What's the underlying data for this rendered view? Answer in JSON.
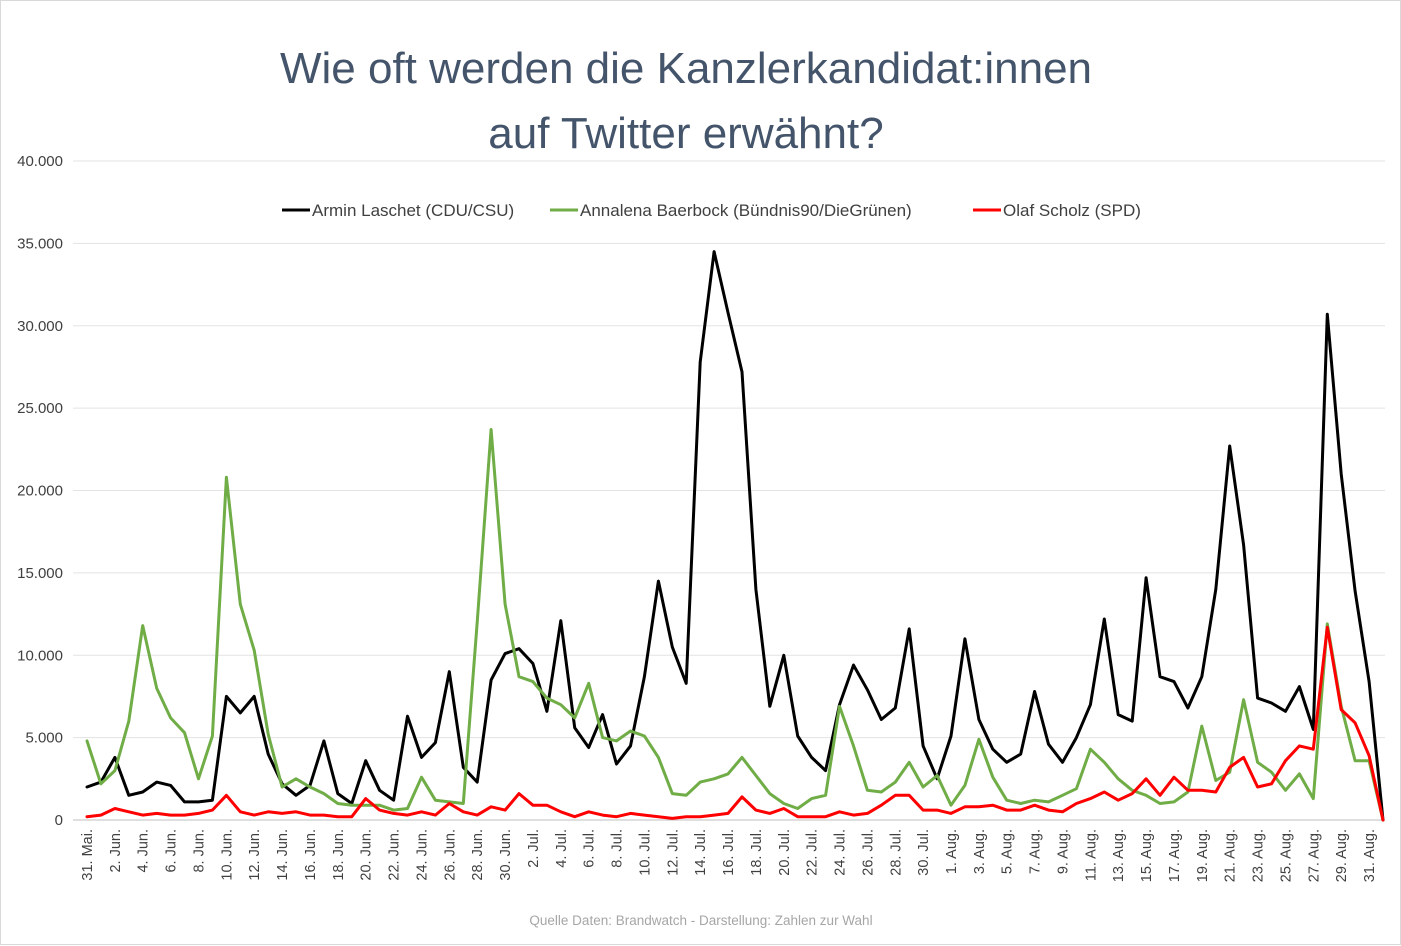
{
  "chart_data": {
    "type": "line",
    "title": [
      "Wie oft werden die Kanzlerkandidat:innen",
      "auf Twitter erwähnt?"
    ],
    "source": "Quelle Daten: Brandwatch - Darstellung: Zahlen zur Wahl",
    "xlabel": "",
    "ylabel": "",
    "ylim": [
      0,
      40000
    ],
    "yticks": [
      "0",
      "5.000",
      "10.000",
      "15.000",
      "20.000",
      "25.000",
      "30.000",
      "35.000",
      "40.000"
    ],
    "grid": "horizontal",
    "legend_position": "top",
    "x_start": "31. Mai",
    "x_tick_labels": [
      "31. Mai.",
      "2. Jun.",
      "4. Jun.",
      "6. Jun.",
      "8. Jun.",
      "10. Jun.",
      "12. Jun.",
      "14. Jun.",
      "16. Jun.",
      "18. Jun.",
      "20. Jun.",
      "22. Jun.",
      "24. Jun.",
      "26. Jun.",
      "28. Jun.",
      "30. Jun.",
      "2. Jul.",
      "4. Jul.",
      "6. Jul.",
      "8. Jul.",
      "10. Jul.",
      "12. Jul.",
      "14. Jul.",
      "16. Jul.",
      "18. Jul.",
      "20. Jul.",
      "22. Jul.",
      "24. Jul.",
      "26. Jul.",
      "28. Jul.",
      "30. Jul.",
      "1. Aug.",
      "3. Aug.",
      "5. Aug.",
      "7. Aug.",
      "9. Aug.",
      "11. Aug.",
      "13. Aug.",
      "15. Aug.",
      "17. Aug.",
      "19. Aug.",
      "21. Aug.",
      "23. Aug.",
      "25. Aug.",
      "27. Aug.",
      "29. Aug.",
      "31. Aug."
    ],
    "series": [
      {
        "name": "Armin Laschet (CDU/CSU)",
        "color": "#000000",
        "values": [
          2000,
          2300,
          3800,
          1500,
          1700,
          2300,
          2100,
          1100,
          1100,
          1200,
          7500,
          6500,
          7500,
          4000,
          2200,
          1500,
          2100,
          4800,
          1600,
          1000,
          3600,
          1800,
          1200,
          6300,
          3800,
          4700,
          9000,
          3200,
          2300,
          8500,
          10100,
          10400,
          9500,
          6600,
          12100,
          5600,
          4400,
          6400,
          3400,
          4500,
          8700,
          14500,
          10500,
          8300,
          27800,
          34500,
          30800,
          27200,
          14000,
          6900,
          10000,
          5100,
          3800,
          3000,
          7000,
          9400,
          7900,
          6100,
          6800,
          11600,
          4500,
          2500,
          5100,
          11000,
          6100,
          4300,
          3500,
          4000,
          7800,
          4600,
          3500,
          5000,
          7000,
          12200,
          6400,
          6000,
          14700,
          8700,
          8400,
          6800,
          8700,
          14000,
          22700,
          16700,
          7400,
          7100,
          6600,
          8100,
          5500,
          30700,
          21000,
          13900,
          8400,
          0
        ]
      },
      {
        "name": "Annalena Baerbock (Bündnis90/DieGrünen)",
        "color": "#70ad47",
        "values": [
          4800,
          2200,
          3000,
          6000,
          11800,
          8000,
          6200,
          5300,
          2500,
          5100,
          20800,
          13100,
          10300,
          5200,
          2000,
          2500,
          2000,
          1600,
          1000,
          900,
          900,
          900,
          600,
          700,
          2600,
          1200,
          1100,
          1000,
          12000,
          23700,
          13100,
          8700,
          8400,
          7400,
          7000,
          6200,
          8300,
          5000,
          4800,
          5400,
          5100,
          3800,
          1600,
          1500,
          2300,
          2500,
          2800,
          3800,
          2700,
          1600,
          1000,
          700,
          1300,
          1500,
          6900,
          4500,
          1800,
          1700,
          2300,
          3500,
          2000,
          2700,
          900,
          2100,
          4900,
          2600,
          1200,
          1000,
          1200,
          1100,
          1500,
          1900,
          4300,
          3500,
          2500,
          1800,
          1500,
          1000,
          1100,
          1700,
          5700,
          2400,
          2900,
          7300,
          3500,
          2900,
          1800,
          2800,
          1300,
          11900,
          6900,
          3600,
          3600,
          0
        ]
      },
      {
        "name": "Olaf Scholz (SPD)",
        "color": "#ff0000",
        "values": [
          200,
          300,
          700,
          500,
          300,
          400,
          300,
          300,
          400,
          600,
          1500,
          500,
          300,
          500,
          400,
          500,
          300,
          300,
          200,
          200,
          1300,
          600,
          400,
          300,
          500,
          300,
          1000,
          500,
          300,
          800,
          600,
          1600,
          900,
          900,
          500,
          200,
          500,
          300,
          200,
          400,
          300,
          200,
          100,
          200,
          200,
          300,
          400,
          1400,
          600,
          400,
          700,
          200,
          200,
          200,
          500,
          300,
          400,
          900,
          1500,
          1500,
          600,
          600,
          400,
          800,
          800,
          900,
          600,
          600,
          900,
          600,
          500,
          1000,
          1300,
          1700,
          1200,
          1600,
          2500,
          1500,
          2600,
          1800,
          1800,
          1700,
          3200,
          3800,
          2000,
          2200,
          3600,
          4500,
          4300,
          11700,
          6700,
          5900,
          3900,
          0
        ]
      }
    ]
  }
}
